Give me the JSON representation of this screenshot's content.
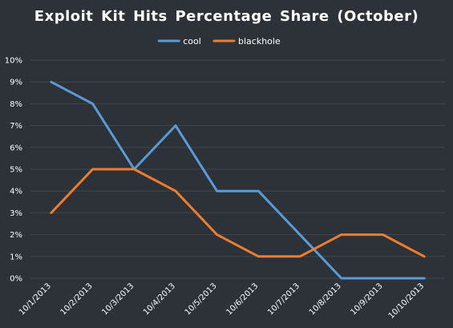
{
  "chart_data": {
    "type": "line",
    "title": "Exploit Kit Hits Percentage Share (October)",
    "xlabel": "",
    "ylabel": "",
    "categories": [
      "10/1/2013",
      "10/2/2013",
      "10/3/2013",
      "10/4/2013",
      "10/5/2013",
      "10/6/2013",
      "10/7/2013",
      "10/8/2013",
      "10/9/2013",
      "10/10/2013"
    ],
    "series": [
      {
        "name": "cool",
        "color": "#5b9bd5",
        "values": [
          9,
          8,
          5,
          7,
          4,
          4,
          2,
          0,
          0,
          0
        ]
      },
      {
        "name": "blackhole",
        "color": "#ed7d31",
        "values": [
          3,
          5,
          5,
          4,
          2,
          1,
          1,
          2,
          2,
          1
        ]
      }
    ],
    "ylim": [
      0,
      10
    ],
    "yticks": [
      0,
      1,
      2,
      3,
      4,
      5,
      6,
      7,
      8,
      9,
      10
    ],
    "yformat": "percent",
    "grid": true,
    "legend_position": "top-center",
    "colors": {
      "background": "#2c3237",
      "gridline": "#41484e",
      "text": "#ffffff"
    }
  }
}
